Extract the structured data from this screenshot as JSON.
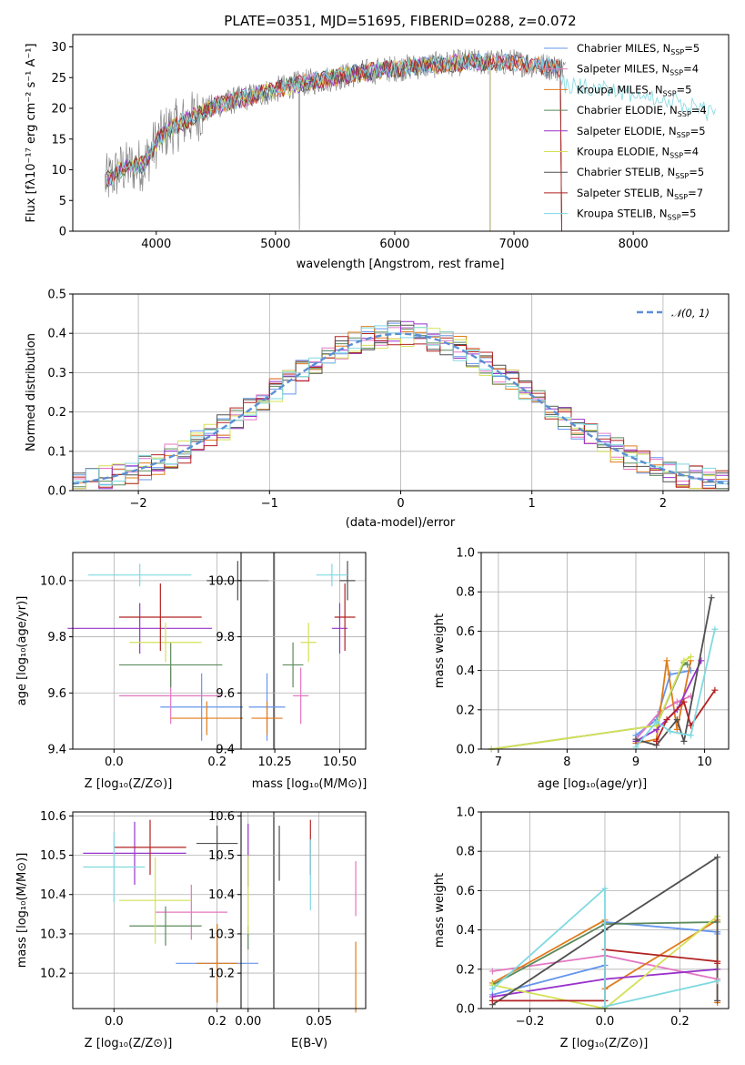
{
  "colors": {
    "grid": "#b0b0b0",
    "series": [
      "#6495ed",
      "#e377c2",
      "#e07b1a",
      "#5c8a5c",
      "#9932cc",
      "#d4e157",
      "#505050",
      "#b22222",
      "#7fd9e0"
    ]
  },
  "chart_data": [
    {
      "id": "spectrum",
      "type": "line",
      "title": "PLATE=0351, MJD=51695, FIBERID=0288, z=0.072",
      "xlabel": "wavelength [Angstrom, rest frame]",
      "ylabel": "Flux [fλ10⁻¹⁷ erg cm⁻² s⁻¹ A⁻¹]",
      "xlim": [
        3300,
        8800
      ],
      "ylim": [
        0,
        32
      ],
      "xticks": [
        4000,
        5000,
        6000,
        7000,
        8000
      ],
      "yticks": [
        0,
        5,
        10,
        15,
        20,
        25,
        30
      ],
      "grid": false,
      "legend": "right",
      "continuum": {
        "x": [
          3570,
          3700,
          3900,
          4000,
          4100,
          4300,
          4500,
          4800,
          5000,
          5200,
          5500,
          5800,
          6000,
          6300,
          6600,
          6800,
          7000,
          7200,
          7400,
          7600,
          7800,
          8000,
          8300,
          8600,
          8800
        ],
        "y": [
          8,
          10,
          11,
          14.5,
          16.5,
          18.5,
          20.5,
          22,
          23,
          24,
          25,
          26,
          26.5,
          27,
          27.5,
          27.5,
          27.5,
          27,
          26.5,
          26,
          25.5,
          25,
          24,
          22,
          21
        ]
      },
      "series": [
        {
          "name": "Chabrier MILES, N_SSP=5",
          "end": 7400
        },
        {
          "name": "Salpeter MILES, N_SSP=4",
          "end": 7400
        },
        {
          "name": "Kroupa MILES, N_SSP=5",
          "end": 7400
        },
        {
          "name": "Chabrier ELODIE, N_SSP=4",
          "end": 6800
        },
        {
          "name": "Salpeter ELODIE, N_SSP=5",
          "end": 6800
        },
        {
          "name": "Kroupa ELODIE, N_SSP=4",
          "end": 6800
        },
        {
          "name": "Chabrier STELIB, N_SSP=5",
          "end": 7400
        },
        {
          "name": "Salpeter STELIB, N_SSP=7",
          "end": 7400
        },
        {
          "name": "Kroupa STELIB, N_SSP=5",
          "end": 8700
        }
      ]
    },
    {
      "id": "residuals",
      "type": "line",
      "xlabel": "(data-model)/error",
      "ylabel": "Normed distribution",
      "xlim": [
        -2.5,
        2.5
      ],
      "ylim": [
        0,
        0.5
      ],
      "xticks": [
        -2,
        -1,
        0,
        1,
        2
      ],
      "xtick_labels": [
        "−2",
        "−1",
        "0",
        "1",
        "2"
      ],
      "yticks": [
        0.0,
        0.1,
        0.2,
        0.3,
        0.4,
        0.5
      ],
      "ytick_labels": [
        "0.0",
        "0.1",
        "0.2",
        "0.3",
        "0.4",
        "0.5"
      ],
      "grid": true,
      "legend": "top-right",
      "gaussian_label": "𝒩(0, 1)"
    },
    {
      "id": "age_vs_Z",
      "type": "scatter",
      "xlabel": "Z [log₁₀(Z/Z⊙)]",
      "ylabel": "age  [log₁₀(age/yr)]",
      "xlim": [
        -0.08,
        0.31
      ],
      "ylim": [
        9.4,
        10.1
      ],
      "xticks": [
        0.0,
        0.2
      ],
      "xtick_labels": [
        "0.0",
        "0.2"
      ],
      "yticks": [
        9.4,
        9.6,
        9.8,
        10.0
      ],
      "ytick_labels": [
        "9.4",
        "9.6",
        "9.8",
        "10.0"
      ],
      "grid": true,
      "points": [
        {
          "x": 0.17,
          "y": 9.55,
          "xerr": 0.08,
          "yerr": 0.12,
          "c": 0
        },
        {
          "x": 0.11,
          "y": 9.59,
          "xerr": 0.1,
          "yerr": 0.1,
          "c": 1
        },
        {
          "x": 0.18,
          "y": 9.51,
          "xerr": 0.07,
          "yerr": 0.06,
          "c": 2
        },
        {
          "x": 0.11,
          "y": 9.7,
          "xerr": 0.1,
          "yerr": 0.08,
          "c": 3
        },
        {
          "x": 0.05,
          "y": 9.83,
          "xerr": 0.14,
          "yerr": 0.09,
          "c": 4
        },
        {
          "x": 0.1,
          "y": 9.78,
          "xerr": 0.07,
          "yerr": 0.07,
          "c": 5
        },
        {
          "x": 0.24,
          "y": 10.0,
          "xerr": 0.06,
          "yerr": 0.07,
          "c": 6
        },
        {
          "x": 0.09,
          "y": 9.87,
          "xerr": 0.08,
          "yerr": 0.12,
          "c": 7
        },
        {
          "x": 0.05,
          "y": 10.02,
          "xerr": 0.1,
          "yerr": 0.04,
          "c": 8
        }
      ]
    },
    {
      "id": "age_vs_mass",
      "type": "scatter",
      "xlabel": "mass [log₁₀(M/M⊙)]",
      "xlim": [
        10.12,
        10.6
      ],
      "ylim": [
        9.4,
        10.1
      ],
      "xticks": [
        10.25,
        10.5
      ],
      "xtick_labels": [
        "10.25",
        "10.50"
      ],
      "yticks": [
        9.4,
        9.6,
        9.8,
        10.0
      ],
      "ytick_labels": [
        "9.4",
        "9.6",
        "9.8",
        "10.0"
      ],
      "grid": true,
      "points": [
        {
          "x": 10.22,
          "y": 9.55,
          "xerr": 0.07,
          "yerr": 0.12,
          "c": 0
        },
        {
          "x": 10.35,
          "y": 9.59,
          "xerr": 0.03,
          "yerr": 0.1,
          "c": 1
        },
        {
          "x": 10.22,
          "y": 9.51,
          "xerr": 0.06,
          "yerr": 0.06,
          "c": 2
        },
        {
          "x": 10.32,
          "y": 9.7,
          "xerr": 0.04,
          "yerr": 0.08,
          "c": 3
        },
        {
          "x": 10.5,
          "y": 9.83,
          "xerr": 0.03,
          "yerr": 0.09,
          "c": 4
        },
        {
          "x": 10.38,
          "y": 9.78,
          "xerr": 0.03,
          "yerr": 0.07,
          "c": 5
        },
        {
          "x": 10.53,
          "y": 10.0,
          "xerr": 0.03,
          "yerr": 0.07,
          "c": 6
        },
        {
          "x": 10.52,
          "y": 9.87,
          "xerr": 0.04,
          "yerr": 0.12,
          "c": 7
        },
        {
          "x": 10.47,
          "y": 10.02,
          "xerr": 0.06,
          "yerr": 0.04,
          "c": 8
        }
      ]
    },
    {
      "id": "weight_vs_age",
      "type": "line",
      "xlabel": "age  [log₁₀(age/yr)]",
      "ylabel": "mass weight",
      "xlim": [
        6.75,
        10.35
      ],
      "ylim": [
        0,
        1
      ],
      "xticks": [
        7,
        8,
        9,
        10
      ],
      "xtick_labels": [
        "7",
        "8",
        "9",
        "10"
      ],
      "yticks": [
        0.0,
        0.2,
        0.4,
        0.6,
        0.8,
        1.0
      ],
      "ytick_labels": [
        "0.0",
        "0.2",
        "0.4",
        "0.6",
        "0.8",
        "1.0"
      ],
      "grid": true,
      "series": [
        {
          "c": 0,
          "x": [
            9.0,
            9.3,
            9.5,
            9.8
          ],
          "y": [
            0.07,
            0.15,
            0.38,
            0.4
          ]
        },
        {
          "c": 1,
          "x": [
            9.0,
            9.35,
            9.6,
            9.8
          ],
          "y": [
            0.05,
            0.19,
            0.24,
            0.27
          ]
        },
        {
          "c": 2,
          "x": [
            9.0,
            9.3,
            9.45,
            9.6,
            9.8
          ],
          "y": [
            0.03,
            0.05,
            0.45,
            0.1,
            0.45
          ]
        },
        {
          "c": 3,
          "x": [
            6.9,
            9.3,
            9.7,
            9.75
          ],
          "y": [
            0.0,
            0.12,
            0.44,
            0.43
          ]
        },
        {
          "c": 4,
          "x": [
            9.0,
            9.3,
            9.6,
            9.95
          ],
          "y": [
            0.04,
            0.1,
            0.2,
            0.45
          ]
        },
        {
          "c": 5,
          "x": [
            6.9,
            9.3,
            9.7,
            9.8
          ],
          "y": [
            0.0,
            0.12,
            0.45,
            0.47
          ]
        },
        {
          "c": 6,
          "x": [
            9.0,
            9.3,
            9.6,
            9.7,
            10.1
          ],
          "y": [
            0.05,
            0.02,
            0.15,
            0.04,
            0.77
          ]
        },
        {
          "c": 7,
          "x": [
            9.3,
            9.45,
            9.7,
            9.8,
            10.15
          ],
          "y": [
            0.04,
            0.15,
            0.24,
            0.12,
            0.3
          ]
        },
        {
          "c": 8,
          "x": [
            9.0,
            9.3,
            9.5,
            9.8,
            10.15
          ],
          "y": [
            0.01,
            0.14,
            0.09,
            0.07,
            0.61
          ]
        }
      ]
    },
    {
      "id": "mass_vs_Z",
      "type": "scatter",
      "xlabel": "Z [log₁₀(Z/Z⊙)]",
      "ylabel": "mass [log₁₀(M/M⊙)]",
      "xlim": [
        -0.08,
        0.31
      ],
      "ylim": [
        10.11,
        10.61
      ],
      "xticks": [
        0.0,
        0.2
      ],
      "xtick_labels": [
        "0.0",
        "0.2"
      ],
      "yticks": [
        10.2,
        10.3,
        10.4,
        10.5,
        10.6
      ],
      "ytick_labels": [
        "10.2",
        "10.3",
        "10.4",
        "10.5",
        "10.6"
      ],
      "grid": true,
      "points": [
        {
          "x": 0.2,
          "y": 10.225,
          "xerr": 0.08,
          "yerr": 0.1,
          "c": 0
        },
        {
          "x": 0.15,
          "y": 10.355,
          "xerr": 0.07,
          "yerr": 0.07,
          "c": 1
        },
        {
          "x": 0.2,
          "y": 10.225,
          "xerr": 0.04,
          "yerr": 0.1,
          "c": 2
        },
        {
          "x": 0.1,
          "y": 10.32,
          "xerr": 0.07,
          "yerr": 0.05,
          "c": 3
        },
        {
          "x": 0.04,
          "y": 10.505,
          "xerr": 0.1,
          "yerr": 0.08,
          "c": 4
        },
        {
          "x": 0.08,
          "y": 10.385,
          "xerr": 0.07,
          "yerr": 0.11,
          "c": 5
        },
        {
          "x": 0.2,
          "y": 10.53,
          "xerr": 0.04,
          "yerr": 0.045,
          "c": 6
        },
        {
          "x": 0.07,
          "y": 10.52,
          "xerr": 0.07,
          "yerr": 0.07,
          "c": 7
        },
        {
          "x": 0.0,
          "y": 10.47,
          "xerr": 0.06,
          "yerr": 0.09,
          "c": 8
        }
      ]
    },
    {
      "id": "mass_vs_ebv",
      "type": "scatter",
      "xlabel": "E(B-V)",
      "xlim": [
        -0.005,
        0.083
      ],
      "ylim": [
        10.11,
        10.61
      ],
      "xticks": [
        0.0,
        0.05
      ],
      "xtick_labels": [
        "0.00",
        "0.05"
      ],
      "yticks": [
        10.2,
        10.3,
        10.4,
        10.5,
        10.6
      ],
      "ytick_labels": [
        "10.2",
        "10.3",
        "10.4",
        "10.5",
        "10.6"
      ],
      "grid": true,
      "points": [
        {
          "x": 0.076,
          "y": 10.19,
          "xerr": 0,
          "yerr": 0.09,
          "c": 2
        },
        {
          "x": 0.076,
          "y": 10.415,
          "xerr": 0,
          "yerr": 0.07,
          "c": 1
        },
        {
          "x": 0.0,
          "y": 10.29,
          "xerr": 0,
          "yerr": 0.03,
          "c": 3
        },
        {
          "x": 0.0,
          "y": 10.5,
          "xerr": 0,
          "yerr": 0.08,
          "c": 4
        },
        {
          "x": 0.0,
          "y": 10.4,
          "xerr": 0,
          "yerr": 0.1,
          "c": 5
        },
        {
          "x": 0.022,
          "y": 10.505,
          "xerr": 0,
          "yerr": 0.07,
          "c": 6
        },
        {
          "x": 0.044,
          "y": 10.52,
          "xerr": 0,
          "yerr": 0.07,
          "c": 7
        },
        {
          "x": 0.044,
          "y": 10.45,
          "xerr": 0,
          "yerr": 0.09,
          "c": 8
        }
      ]
    },
    {
      "id": "weight_vs_Z",
      "type": "line",
      "xlabel": "Z [log₁₀(Z/Z⊙)]",
      "ylabel": "mass weight",
      "xlim": [
        -0.33,
        0.33
      ],
      "ylim": [
        0,
        1
      ],
      "xticks": [
        -0.2,
        0.0,
        0.2
      ],
      "xtick_labels": [
        "−0.2",
        "0.0",
        "0.2"
      ],
      "yticks": [
        0.0,
        0.2,
        0.4,
        0.6,
        0.8,
        1.0
      ],
      "ytick_labels": [
        "0.0",
        "0.2",
        "0.4",
        "0.6",
        "0.8",
        "1.0"
      ],
      "grid": true,
      "series": [
        {
          "c": 0,
          "x": [
            -0.3,
            0.0,
            0.0,
            0.3,
            0.3
          ],
          "y": [
            0.07,
            0.22,
            0.44,
            0.39,
            0.38
          ]
        },
        {
          "c": 1,
          "x": [
            -0.3,
            0.0,
            0.3
          ],
          "y": [
            0.19,
            0.27,
            0.15
          ]
        },
        {
          "c": 2,
          "x": [
            -0.3,
            0.0,
            0.0,
            0.3,
            0.3
          ],
          "y": [
            0.13,
            0.45,
            0.1,
            0.45,
            0.03
          ]
        },
        {
          "c": 3,
          "x": [
            -0.3,
            0.0,
            0.3
          ],
          "y": [
            0.12,
            0.43,
            0.44
          ]
        },
        {
          "c": 4,
          "x": [
            -0.3,
            0.0,
            0.3
          ],
          "y": [
            0.06,
            0.15,
            0.2
          ]
        },
        {
          "c": 5,
          "x": [
            -0.3,
            0.0,
            0.3
          ],
          "y": [
            0.12,
            0.0,
            0.47
          ]
        },
        {
          "c": 6,
          "x": [
            -0.3,
            0.0,
            0.3,
            0.3
          ],
          "y": [
            0.02,
            0.4,
            0.77,
            0.04
          ]
        },
        {
          "c": 7,
          "x": [
            -0.3,
            0.0,
            0.0,
            0.3,
            0.3
          ],
          "y": [
            0.04,
            0.04,
            0.3,
            0.24,
            0.23
          ]
        },
        {
          "c": 8,
          "x": [
            -0.3,
            0.0,
            0.0,
            0.3
          ],
          "y": [
            0.1,
            0.61,
            0.01,
            0.14
          ]
        }
      ]
    }
  ]
}
